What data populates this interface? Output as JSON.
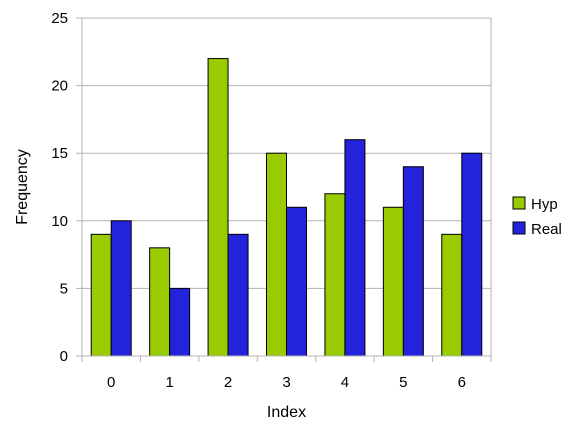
{
  "chart_data": {
    "type": "bar",
    "title": "",
    "xlabel": "Index",
    "ylabel": "Frequency",
    "categories": [
      "0",
      "1",
      "2",
      "3",
      "4",
      "5",
      "6"
    ],
    "series": [
      {
        "name": "Hyp",
        "color": "#99cc00",
        "values": [
          9,
          8,
          22,
          15,
          12,
          11,
          9
        ]
      },
      {
        "name": "Real",
        "color": "#2323dc",
        "values": [
          10,
          5,
          9,
          11,
          16,
          14,
          15
        ]
      }
    ],
    "ylim": [
      0,
      25
    ],
    "yticks": [
      0,
      5,
      10,
      15,
      20,
      25
    ],
    "grid": true,
    "legend_position": "right"
  }
}
